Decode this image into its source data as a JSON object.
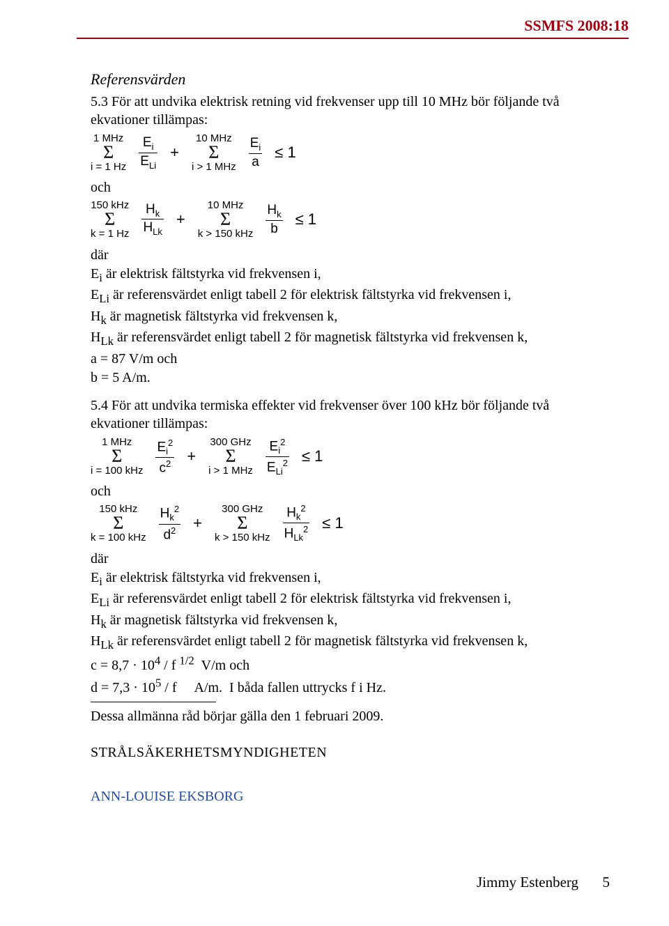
{
  "doc_id": "SSMFS 2008:18",
  "heading": "Referensvärden",
  "para_5_3": "5.3 För att undvika elektrisk retning vid frekvenser upp till 10 MHz bör följande två ekvationer tillämpas:",
  "para_5_4": "5.4 För att undvika termiska effekter vid frekvenser över 100 kHz bör följande två ekvationer tillämpas:",
  "och": "och",
  "where_label": "där",
  "eq1": {
    "s1_top": "1 MHz",
    "s1_bot": "i = 1 Hz",
    "f1_n": "E",
    "f1_n_sub": "i",
    "f1_d": "E",
    "f1_d_sub": "Li",
    "s2_top": "10 MHz",
    "s2_bot": "i > 1 MHz",
    "f2_n": "E",
    "f2_n_sub": "i",
    "f2_d": "a",
    "rhs": "≤  1"
  },
  "eq2": {
    "s1_top": "150 kHz",
    "s1_bot": "k = 1 Hz",
    "f1_n": "H",
    "f1_n_sub": "k",
    "f1_d": "H",
    "f1_d_sub": "Lk",
    "s2_top": "10 MHz",
    "s2_bot": "k > 150 kHz",
    "f2_n": "H",
    "f2_n_sub": "k",
    "f2_d": "b",
    "rhs": "≤  1"
  },
  "eq3": {
    "s1_top": "1 MHz",
    "s1_bot": "i = 100 kHz",
    "f1_n": "E",
    "f1_n_sub": "i",
    "f1_n_sup": "2",
    "f1_d": "c",
    "f1_d_sup": "2",
    "s2_top": "300 GHz",
    "s2_bot": "i > 1 MHz",
    "f2_n": "E",
    "f2_n_sub": "i",
    "f2_n_sup": "2",
    "f2_d": "E",
    "f2_d_sub": "Li",
    "f2_d_sup": "2",
    "rhs": "≤  1"
  },
  "eq4": {
    "s1_top": "150 kHz",
    "s1_bot": "k = 100 kHz",
    "f1_n": "H",
    "f1_n_sub": "k",
    "f1_n_sup": "2",
    "f1_d": "d",
    "f1_d_sup": "2",
    "s2_top": "300 GHz",
    "s2_bot": "k > 150 kHz",
    "f2_n": "H",
    "f2_n_sub": "k",
    "f2_n_sup": "2",
    "f2_d": "H",
    "f2_d_sub": "Lk",
    "f2_d_sup": "2",
    "rhs": "≤  1"
  },
  "where1": {
    "l1": "E<sub>i</sub> är elektrisk fältstyrka vid frekvensen i,",
    "l2": "E<sub>Li</sub> är referensvärdet enligt tabell 2 för elektrisk fältstyrka vid frekvensen i,",
    "l3": "H<sub>k</sub> är magnetisk fältstyrka vid frekvensen k,",
    "l4": "H<sub>Lk</sub> är referensvärdet enligt tabell 2 för magnetisk fältstyrka vid frekvensen k,",
    "l5": "a = 87 V/m och",
    "l6": "b = 5 A/m."
  },
  "where2": {
    "l1": "E<sub>i</sub> är elektrisk fältstyrka vid frekvensen i,",
    "l2": "E<sub>Li</sub> är referensvärdet enligt tabell 2 för elektrisk fältstyrka vid frekvensen i,",
    "l3": "H<sub>k</sub> är magnetisk fältstyrka vid frekvensen k,",
    "l4": "H<sub>Lk</sub> är referensvärdet enligt tabell 2 för magnetisk fältstyrka vid frekvensen k,",
    "l5": "c = 8,7 · 10<sup>4</sup> / f <sup>1/2</sup>&nbsp;&nbsp;V/m och",
    "l6": "d = 7,3 · 10<sup>5</sup> / f&nbsp;&nbsp;&nbsp;&nbsp;&nbsp;A/m.&nbsp;&nbsp;I båda fallen uttrycks f i Hz."
  },
  "effective": "Dessa allmänna råd börjar gälla den 1 februari 2009.",
  "agency": "STRÅLSÄKERHETSMYNDIGHETEN",
  "signer": "ANN-LOUISE EKSBORG",
  "author": "Jimmy Estenberg",
  "page": "5",
  "colors": {
    "accent": "#a00010",
    "link": "#2a4aa0",
    "text": "#000000",
    "bg": "#ffffff"
  }
}
